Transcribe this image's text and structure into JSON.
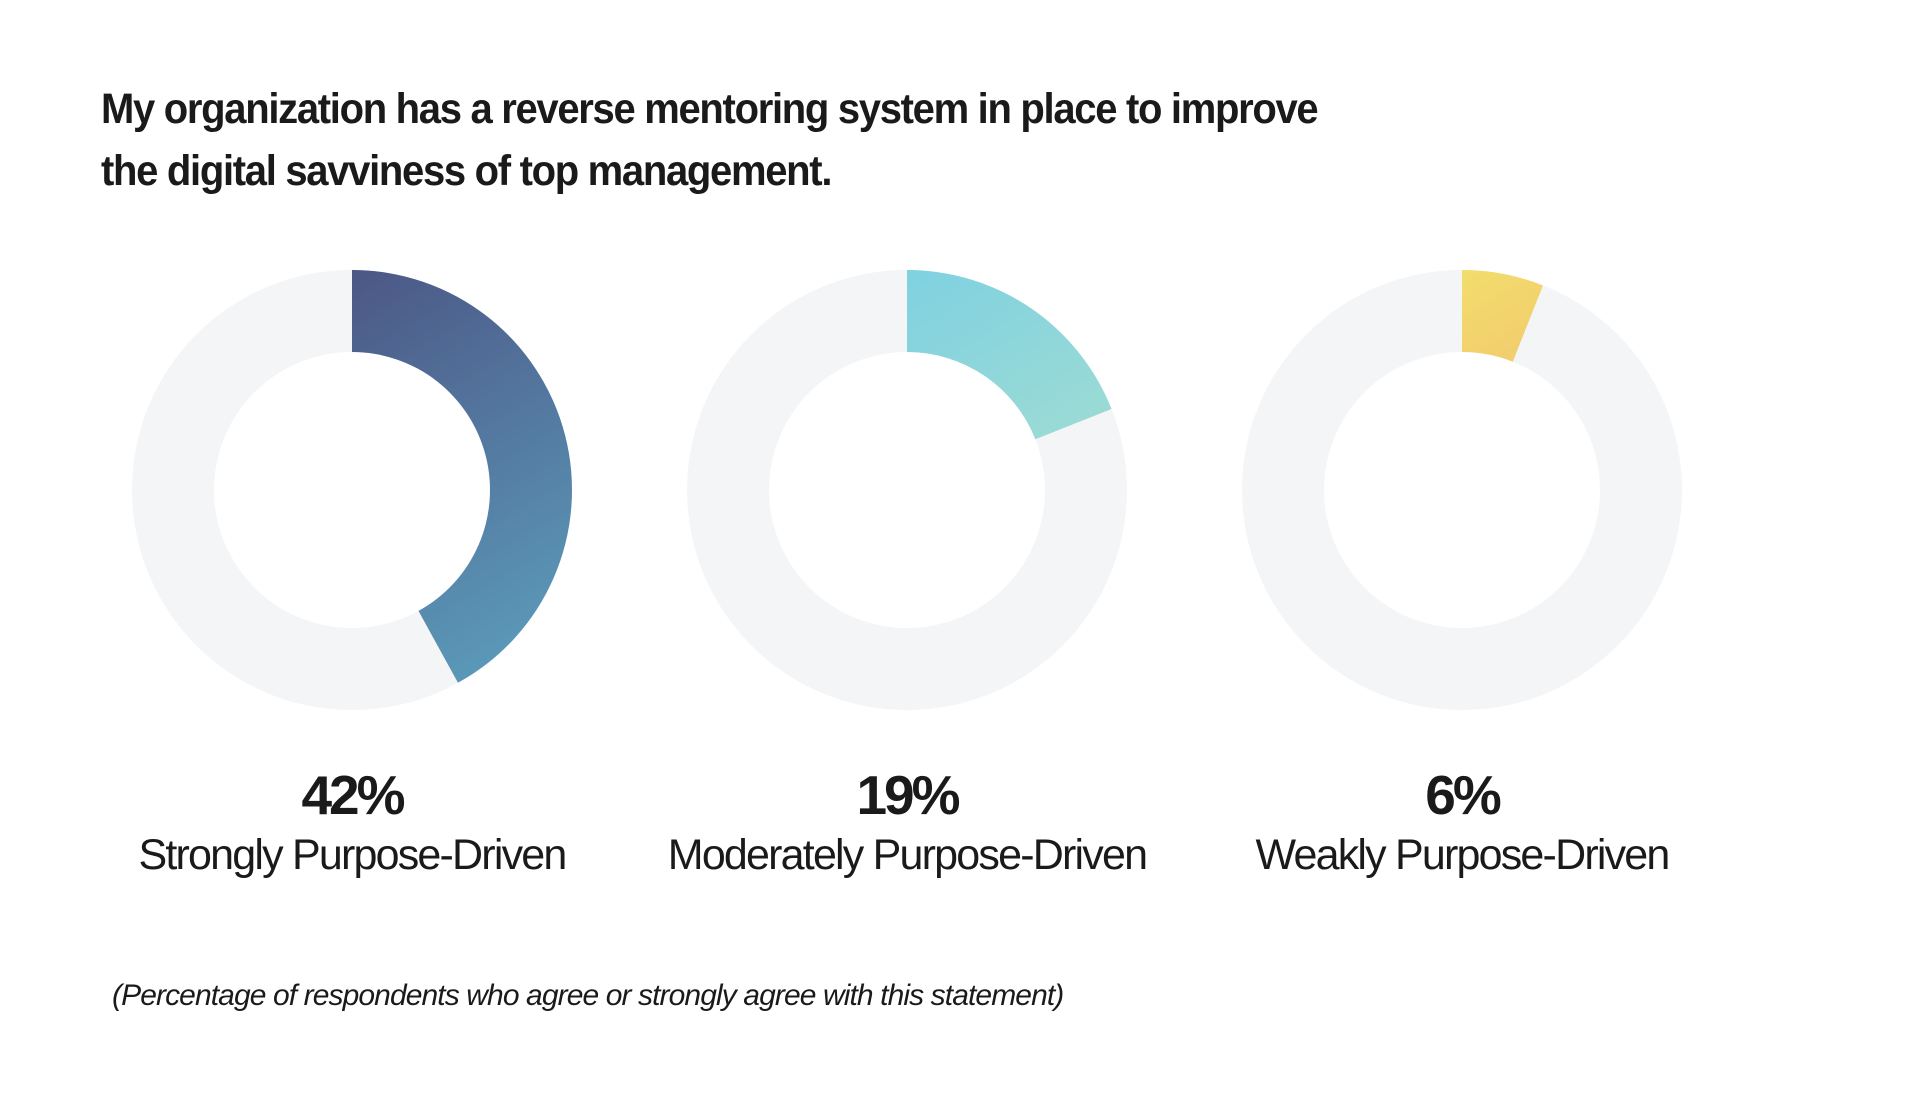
{
  "chart_data": {
    "type": "pie",
    "title_lines": [
      "My organization has a reverse mentoring system in place to improve",
      "the digital savviness of top management."
    ],
    "note": "(Percentage of respondents who agree or strongly agree with this statement)",
    "track_color": "#f4f5f7",
    "donuts": [
      {
        "value": 42,
        "value_label": "42%",
        "category": "Strongly Purpose-Driven",
        "gradient": [
          "#4c5786",
          "#5c9dbc"
        ]
      },
      {
        "value": 19,
        "value_label": "19%",
        "category": "Moderately Purpose-Driven",
        "gradient": [
          "#7fd1e1",
          "#b5e4c9"
        ]
      },
      {
        "value": 6,
        "value_label": "6%",
        "category": "Weakly Purpose-Driven",
        "gradient": [
          "#f2dd6d",
          "#f19b6c"
        ]
      }
    ]
  }
}
